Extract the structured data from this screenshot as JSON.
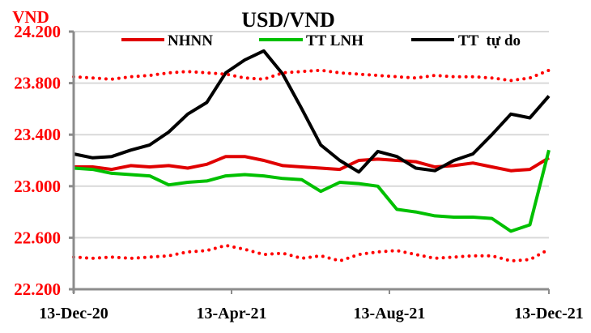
{
  "chart_data": {
    "type": "line",
    "title": "USD/VND",
    "ylabel": "VND",
    "xlabel": "",
    "ylim": [
      22200,
      24200
    ],
    "y_ticks": [
      22200,
      22600,
      23000,
      23400,
      23800,
      24200
    ],
    "y_tick_labels": [
      "22.200",
      "22.600",
      "23.000",
      "23.400",
      "23.800",
      "24.200"
    ],
    "x_tick_labels": [
      "13-Dec-20",
      "13-Apr-21",
      "13-Aug-21",
      "13-Dec-21"
    ],
    "grid": "horizontal",
    "legend_position": "top",
    "legend": [
      "NHNN",
      "TT LNH",
      "TT  tự do"
    ],
    "x_range": [
      "13-Dec-20",
      "13-Dec-21"
    ],
    "x": [
      0,
      0.04,
      0.08,
      0.12,
      0.16,
      0.2,
      0.24,
      0.28,
      0.32,
      0.36,
      0.4,
      0.44,
      0.48,
      0.52,
      0.56,
      0.6,
      0.64,
      0.68,
      0.72,
      0.76,
      0.8,
      0.84,
      0.88,
      0.92,
      0.96,
      1.0
    ],
    "series": [
      {
        "name": "NHNN",
        "color": "#e00000",
        "style": "solid",
        "values": [
          23150,
          23150,
          23130,
          23160,
          23150,
          23160,
          23140,
          23170,
          23230,
          23230,
          23200,
          23160,
          23150,
          23140,
          23130,
          23200,
          23210,
          23200,
          23190,
          23150,
          23160,
          23180,
          23150,
          23120,
          23130,
          23220
        ]
      },
      {
        "name": "TT LNH",
        "color": "#00c000",
        "style": "solid",
        "values": [
          23140,
          23130,
          23100,
          23090,
          23080,
          23010,
          23030,
          23040,
          23080,
          23090,
          23080,
          23060,
          23050,
          22960,
          23030,
          23020,
          23000,
          22820,
          22800,
          22770,
          22760,
          22760,
          22750,
          22650,
          22700,
          23280
        ]
      },
      {
        "name": "TT tự do",
        "color": "#000000",
        "style": "solid",
        "values": [
          23250,
          23220,
          23230,
          23280,
          23320,
          23420,
          23560,
          23650,
          23880,
          23980,
          24050,
          23870,
          23600,
          23320,
          23200,
          23110,
          23270,
          23230,
          23140,
          23120,
          23200,
          23250,
          23400,
          23560,
          23530,
          23700
        ]
      },
      {
        "name": "Upper band",
        "color": "#ff0000",
        "style": "dotted",
        "values": [
          23850,
          23840,
          23830,
          23850,
          23860,
          23880,
          23890,
          23880,
          23870,
          23840,
          23830,
          23880,
          23890,
          23900,
          23880,
          23870,
          23860,
          23850,
          23840,
          23860,
          23850,
          23850,
          23840,
          23820,
          23840,
          23900
        ]
      },
      {
        "name": "Lower band",
        "color": "#ff0000",
        "style": "dotted",
        "values": [
          22450,
          22440,
          22450,
          22440,
          22450,
          22460,
          22490,
          22500,
          22540,
          22510,
          22470,
          22480,
          22440,
          22460,
          22420,
          22470,
          22490,
          22500,
          22470,
          22440,
          22450,
          22460,
          22460,
          22420,
          22430,
          22510
        ]
      }
    ]
  },
  "labels": {
    "title": "USD/VND",
    "unit": "VND",
    "legend_nhnn": "NHNN",
    "legend_lnh": "TT LNH",
    "legend_free": "TT  tự do"
  }
}
